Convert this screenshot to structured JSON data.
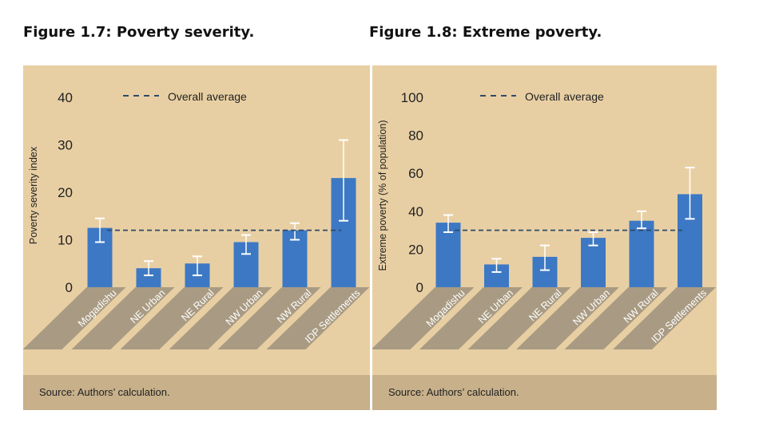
{
  "figures": [
    {
      "title": "Figure 1.7: Poverty severity.",
      "source": "Source: Authors’ calculation.",
      "chart_data": {
        "type": "bar",
        "categories": [
          "Mogadishu",
          "NE Urban",
          "NE Rural",
          "NW Urban",
          "NW Rural",
          "IDP Settlements"
        ],
        "values": [
          12.5,
          4.0,
          5.0,
          9.5,
          12.0,
          23.0
        ],
        "error_low": [
          9.5,
          2.5,
          2.5,
          7.0,
          10.0,
          14.0
        ],
        "error_high": [
          14.5,
          5.5,
          6.5,
          11.0,
          13.5,
          31.0
        ],
        "average": 12.0,
        "average_label": "Overall average",
        "ylabel": "Poverty severity index",
        "xlabel": "",
        "ylim": [
          0,
          40
        ],
        "yticks": [
          0,
          10,
          20,
          30,
          40
        ],
        "legend_position": "top",
        "grid": false,
        "colors": {
          "bar": "#3d78c4",
          "error": "#ffffff",
          "average": "#2e4a6b",
          "background": "#e8cfa3",
          "label_band": "#a99b83"
        }
      }
    },
    {
      "title": "Figure 1.8: Extreme poverty.",
      "source": "Source: Authors’ calculation.",
      "chart_data": {
        "type": "bar",
        "categories": [
          "Mogadishu",
          "NE Urban",
          "NE Rural",
          "NW Urban",
          "NW Rural",
          "IDP Settlements"
        ],
        "values": [
          34,
          12,
          16,
          26,
          35,
          49
        ],
        "error_low": [
          29,
          8,
          9,
          22,
          31,
          36
        ],
        "error_high": [
          38,
          15,
          22,
          29,
          40,
          63
        ],
        "average": 30,
        "average_label": "Overall average",
        "ylabel": "Extreme poverty (% of population)",
        "xlabel": "",
        "ylim": [
          0,
          100
        ],
        "yticks": [
          0,
          20,
          40,
          60,
          80,
          100
        ],
        "legend_position": "top",
        "grid": false,
        "colors": {
          "bar": "#3d78c4",
          "error": "#ffffff",
          "average": "#2e4a6b",
          "background": "#e8cfa3",
          "label_band": "#a99b83"
        }
      }
    }
  ]
}
